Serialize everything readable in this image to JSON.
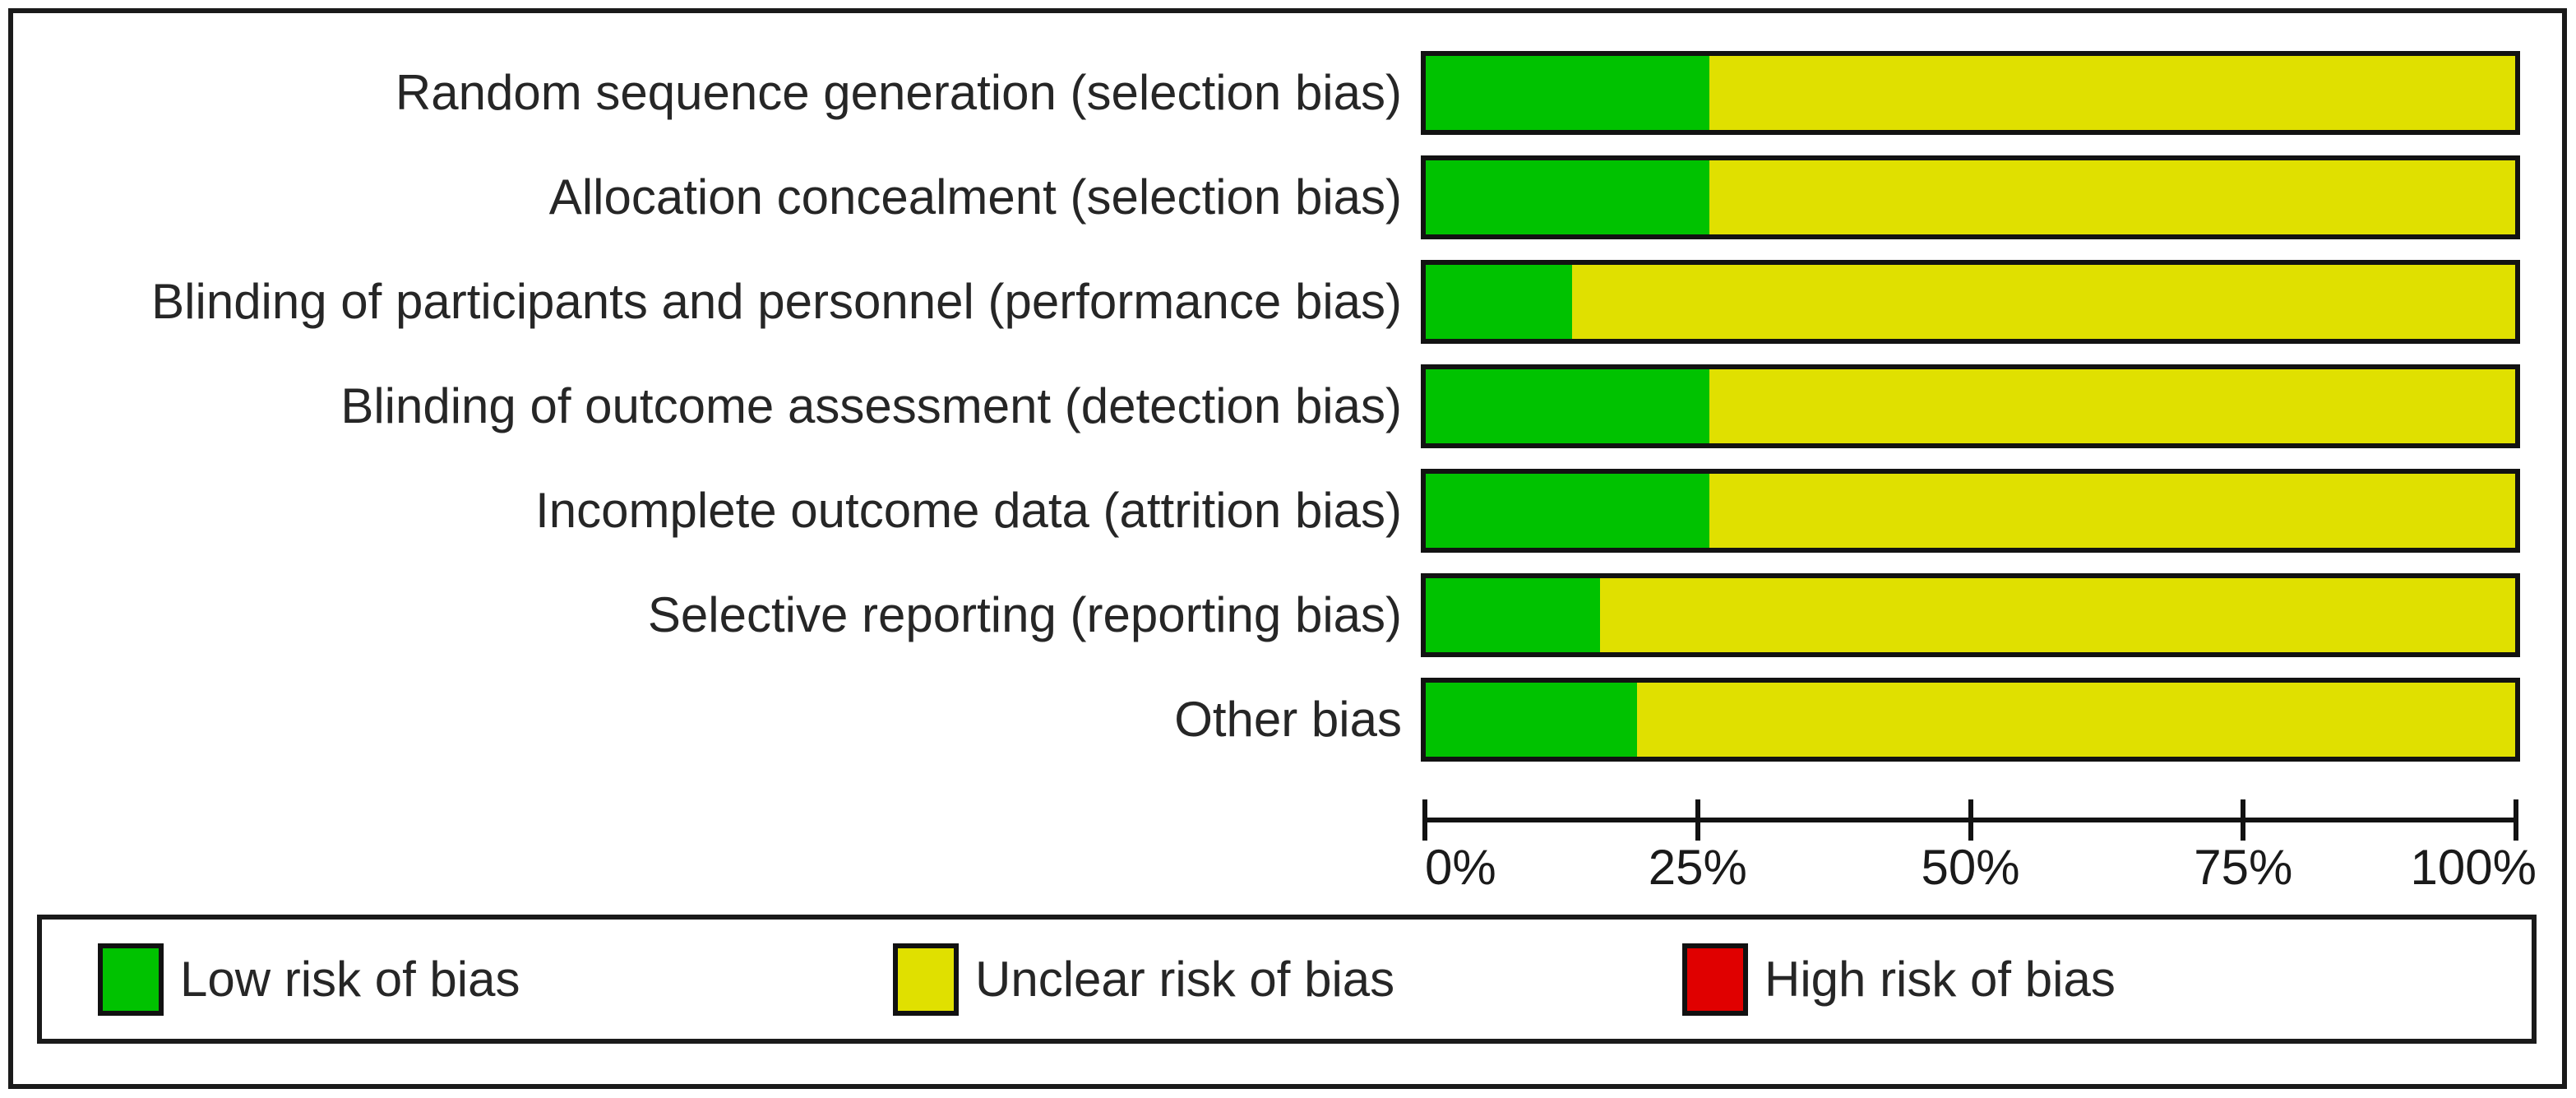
{
  "figure": {
    "legend": {
      "items": [
        {
          "label": "Low risk of bias",
          "color": "#00C200"
        },
        {
          "label": "Unclear risk of bias",
          "color": "#E0E000"
        },
        {
          "label": "High risk of bias",
          "color": "#E00000"
        }
      ]
    }
  },
  "chart_data": {
    "type": "bar",
    "subtype": "stacked-horizontal",
    "categories": [
      "Random sequence generation (selection bias)",
      "Allocation concealment (selection bias)",
      "Blinding of participants and personnel (performance bias)",
      "Blinding of outcome assessment (detection bias)",
      "Incomplete outcome data (attrition bias)",
      "Selective reporting (reporting bias)",
      "Other bias"
    ],
    "series": [
      {
        "name": "Low risk of bias",
        "color": "#00C200",
        "values": [
          26,
          26,
          13.4,
          26,
          26,
          16,
          19.4
        ]
      },
      {
        "name": "Unclear risk of bias",
        "color": "#E0E000",
        "values": [
          74,
          74,
          86.6,
          74,
          74,
          84,
          80.6
        ]
      },
      {
        "name": "High risk of bias",
        "color": "#E00000",
        "values": [
          0,
          0,
          0,
          0,
          0,
          0,
          0
        ]
      }
    ],
    "x_ticks": [
      "0%",
      "25%",
      "50%",
      "75%",
      "100%"
    ],
    "xlim": [
      0,
      100
    ],
    "grid": false,
    "legend_position": "bottom"
  }
}
